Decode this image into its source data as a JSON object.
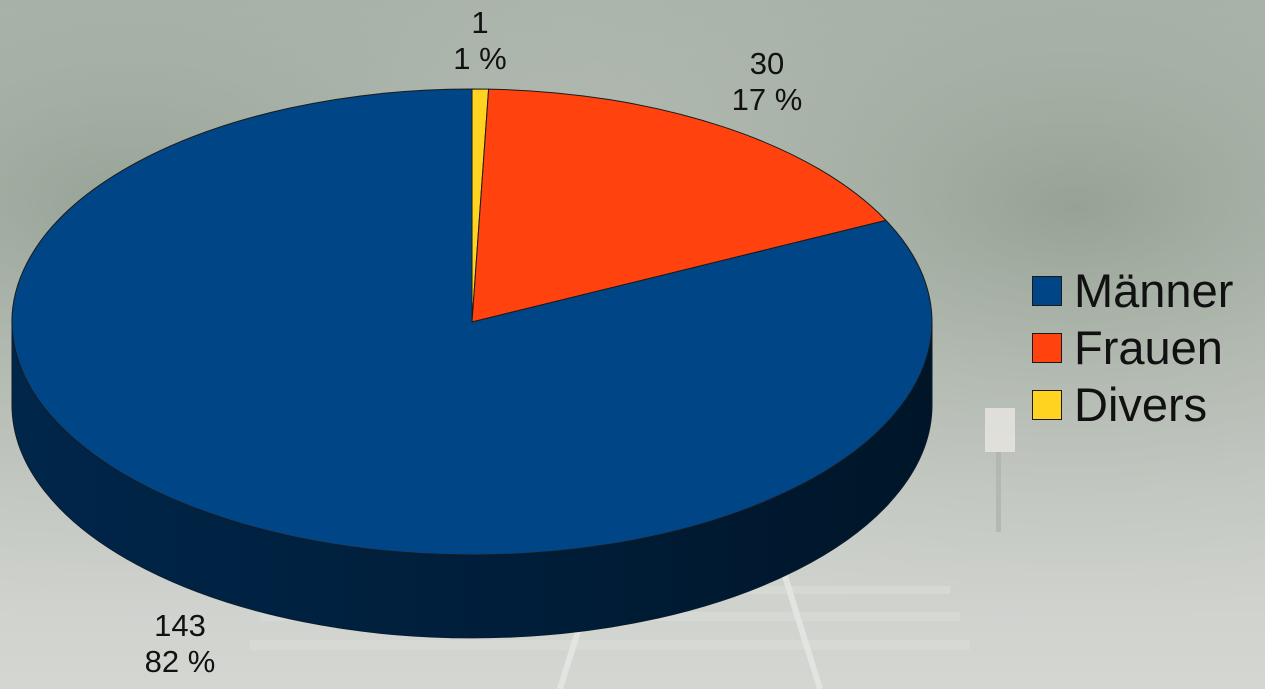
{
  "chart_data": {
    "type": "pie",
    "style": "3d",
    "categories": [
      "Männer",
      "Frauen",
      "Divers"
    ],
    "values": [
      143,
      30,
      1
    ],
    "percent_labels": [
      "82 %",
      "17 %",
      "1 %"
    ],
    "value_labels": [
      "143",
      "30",
      "1"
    ],
    "colors": [
      "#004586",
      "#ff420e",
      "#ffd320"
    ],
    "legend": {
      "placement": "right"
    }
  }
}
